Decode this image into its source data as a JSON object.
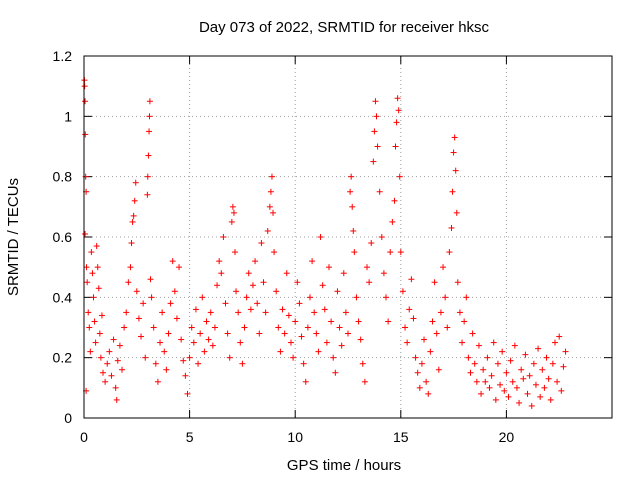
{
  "chart_data": {
    "type": "scatter",
    "title": "Day 073 of 2022, SRMTID for receiver hksc",
    "xlabel": "GPS time / hours",
    "ylabel": "SRMTID / TECUs",
    "xlim": [
      0,
      25
    ],
    "ylim": [
      0,
      1.2
    ],
    "xticks": [
      0,
      5,
      10,
      15,
      20
    ],
    "xtick_labels": [
      "0",
      "5",
      "10",
      "15",
      "20"
    ],
    "yticks": [
      0,
      0.2,
      0.4,
      0.6,
      0.8,
      1.0,
      1.2
    ],
    "ytick_labels": [
      "0",
      "0.2",
      "0.4",
      "0.6",
      "0.8",
      "1",
      "1.2"
    ],
    "grid": true,
    "marker": "+",
    "color": "#ff0000",
    "series": [
      {
        "name": "SRMTID",
        "points": [
          [
            0.02,
            1.12
          ],
          [
            0.03,
            1.1
          ],
          [
            0.05,
            1.05
          ],
          [
            0.06,
            0.94
          ],
          [
            0.08,
            0.8
          ],
          [
            0.1,
            0.75
          ],
          [
            0.05,
            0.61
          ],
          [
            0.12,
            0.5
          ],
          [
            0.15,
            0.45
          ],
          [
            0.2,
            0.35
          ],
          [
            0.25,
            0.3
          ],
          [
            0.3,
            0.22
          ],
          [
            0.1,
            0.09
          ],
          [
            0.35,
            0.55
          ],
          [
            0.4,
            0.48
          ],
          [
            0.45,
            0.4
          ],
          [
            0.5,
            0.32
          ],
          [
            0.55,
            0.25
          ],
          [
            0.6,
            0.57
          ],
          [
            0.65,
            0.5
          ],
          [
            0.7,
            0.43
          ],
          [
            0.75,
            0.28
          ],
          [
            0.8,
            0.2
          ],
          [
            0.85,
            0.34
          ],
          [
            0.9,
            0.15
          ],
          [
            1.0,
            0.12
          ],
          [
            1.1,
            0.18
          ],
          [
            1.2,
            0.22
          ],
          [
            1.3,
            0.14
          ],
          [
            1.4,
            0.26
          ],
          [
            1.5,
            0.1
          ],
          [
            1.55,
            0.06
          ],
          [
            1.6,
            0.19
          ],
          [
            1.7,
            0.24
          ],
          [
            1.8,
            0.16
          ],
          [
            1.9,
            0.3
          ],
          [
            2.0,
            0.35
          ],
          [
            2.1,
            0.45
          ],
          [
            2.2,
            0.5
          ],
          [
            2.25,
            0.58
          ],
          [
            2.3,
            0.65
          ],
          [
            2.35,
            0.67
          ],
          [
            2.4,
            0.72
          ],
          [
            2.45,
            0.78
          ],
          [
            2.5,
            0.42
          ],
          [
            2.6,
            0.33
          ],
          [
            2.7,
            0.27
          ],
          [
            2.8,
            0.38
          ],
          [
            2.9,
            0.2
          ],
          [
            3.0,
            0.74
          ],
          [
            3.02,
            0.8
          ],
          [
            3.05,
            0.87
          ],
          [
            3.08,
            0.95
          ],
          [
            3.1,
            1.0
          ],
          [
            3.12,
            1.05
          ],
          [
            3.15,
            0.46
          ],
          [
            3.2,
            0.4
          ],
          [
            3.3,
            0.3
          ],
          [
            3.4,
            0.18
          ],
          [
            3.5,
            0.12
          ],
          [
            3.6,
            0.25
          ],
          [
            3.7,
            0.35
          ],
          [
            3.8,
            0.22
          ],
          [
            3.9,
            0.16
          ],
          [
            4.0,
            0.28
          ],
          [
            4.1,
            0.38
          ],
          [
            4.2,
            0.52
          ],
          [
            4.3,
            0.42
          ],
          [
            4.4,
            0.33
          ],
          [
            4.5,
            0.5
          ],
          [
            4.6,
            0.26
          ],
          [
            4.7,
            0.19
          ],
          [
            4.8,
            0.14
          ],
          [
            4.9,
            0.08
          ],
          [
            5.0,
            0.2
          ],
          [
            5.1,
            0.3
          ],
          [
            5.2,
            0.25
          ],
          [
            5.3,
            0.36
          ],
          [
            5.4,
            0.18
          ],
          [
            5.5,
            0.28
          ],
          [
            5.6,
            0.4
          ],
          [
            5.7,
            0.22
          ],
          [
            5.8,
            0.32
          ],
          [
            5.9,
            0.26
          ],
          [
            6.0,
            0.35
          ],
          [
            6.1,
            0.24
          ],
          [
            6.2,
            0.3
          ],
          [
            6.3,
            0.44
          ],
          [
            6.4,
            0.52
          ],
          [
            6.5,
            0.48
          ],
          [
            6.6,
            0.6
          ],
          [
            6.7,
            0.38
          ],
          [
            6.8,
            0.28
          ],
          [
            6.9,
            0.2
          ],
          [
            7.0,
            0.65
          ],
          [
            7.05,
            0.7
          ],
          [
            7.1,
            0.68
          ],
          [
            7.15,
            0.55
          ],
          [
            7.2,
            0.42
          ],
          [
            7.3,
            0.35
          ],
          [
            7.4,
            0.25
          ],
          [
            7.5,
            0.18
          ],
          [
            7.6,
            0.3
          ],
          [
            7.7,
            0.4
          ],
          [
            7.8,
            0.48
          ],
          [
            7.9,
            0.36
          ],
          [
            8.0,
            0.44
          ],
          [
            8.1,
            0.52
          ],
          [
            8.2,
            0.38
          ],
          [
            8.3,
            0.28
          ],
          [
            8.4,
            0.58
          ],
          [
            8.5,
            0.45
          ],
          [
            8.6,
            0.35
          ],
          [
            8.7,
            0.62
          ],
          [
            8.8,
            0.7
          ],
          [
            8.85,
            0.75
          ],
          [
            8.9,
            0.8
          ],
          [
            8.95,
            0.68
          ],
          [
            9.0,
            0.55
          ],
          [
            9.1,
            0.42
          ],
          [
            9.2,
            0.3
          ],
          [
            9.3,
            0.22
          ],
          [
            9.4,
            0.36
          ],
          [
            9.5,
            0.28
          ],
          [
            9.6,
            0.48
          ],
          [
            9.7,
            0.34
          ],
          [
            9.8,
            0.25
          ],
          [
            9.9,
            0.2
          ],
          [
            10.0,
            0.32
          ],
          [
            10.1,
            0.45
          ],
          [
            10.2,
            0.38
          ],
          [
            10.3,
            0.27
          ],
          [
            10.4,
            0.18
          ],
          [
            10.5,
            0.12
          ],
          [
            10.6,
            0.3
          ],
          [
            10.7,
            0.4
          ],
          [
            10.8,
            0.52
          ],
          [
            10.9,
            0.35
          ],
          [
            11.0,
            0.28
          ],
          [
            11.1,
            0.22
          ],
          [
            11.2,
            0.6
          ],
          [
            11.3,
            0.44
          ],
          [
            11.4,
            0.36
          ],
          [
            11.5,
            0.25
          ],
          [
            11.6,
            0.5
          ],
          [
            11.7,
            0.32
          ],
          [
            11.8,
            0.2
          ],
          [
            11.9,
            0.15
          ],
          [
            12.0,
            0.42
          ],
          [
            12.1,
            0.3
          ],
          [
            12.2,
            0.24
          ],
          [
            12.3,
            0.48
          ],
          [
            12.4,
            0.35
          ],
          [
            12.5,
            0.28
          ],
          [
            12.6,
            0.75
          ],
          [
            12.65,
            0.8
          ],
          [
            12.7,
            0.7
          ],
          [
            12.75,
            0.62
          ],
          [
            12.8,
            0.55
          ],
          [
            12.9,
            0.4
          ],
          [
            13.0,
            0.32
          ],
          [
            13.1,
            0.26
          ],
          [
            13.2,
            0.18
          ],
          [
            13.3,
            0.12
          ],
          [
            13.4,
            0.5
          ],
          [
            13.5,
            0.45
          ],
          [
            13.6,
            0.58
          ],
          [
            13.7,
            0.85
          ],
          [
            13.75,
            0.95
          ],
          [
            13.8,
            1.05
          ],
          [
            13.85,
            1.0
          ],
          [
            13.9,
            0.9
          ],
          [
            14.0,
            0.75
          ],
          [
            14.1,
            0.6
          ],
          [
            14.2,
            0.48
          ],
          [
            14.3,
            0.4
          ],
          [
            14.4,
            0.32
          ],
          [
            14.5,
            0.55
          ],
          [
            14.6,
            0.65
          ],
          [
            14.7,
            0.72
          ],
          [
            14.75,
            0.9
          ],
          [
            14.8,
            0.98
          ],
          [
            14.85,
            1.06
          ],
          [
            14.9,
            1.02
          ],
          [
            14.95,
            0.8
          ],
          [
            15.0,
            0.55
          ],
          [
            15.1,
            0.42
          ],
          [
            15.2,
            0.3
          ],
          [
            15.3,
            0.25
          ],
          [
            15.4,
            0.36
          ],
          [
            15.5,
            0.46
          ],
          [
            15.6,
            0.33
          ],
          [
            15.7,
            0.2
          ],
          [
            15.8,
            0.15
          ],
          [
            15.9,
            0.1
          ],
          [
            16.0,
            0.18
          ],
          [
            16.1,
            0.26
          ],
          [
            16.2,
            0.12
          ],
          [
            16.3,
            0.08
          ],
          [
            16.4,
            0.22
          ],
          [
            16.5,
            0.32
          ],
          [
            16.6,
            0.45
          ],
          [
            16.7,
            0.28
          ],
          [
            16.8,
            0.16
          ],
          [
            16.9,
            0.35
          ],
          [
            17.0,
            0.5
          ],
          [
            17.1,
            0.4
          ],
          [
            17.2,
            0.3
          ],
          [
            17.3,
            0.55
          ],
          [
            17.4,
            0.63
          ],
          [
            17.45,
            0.75
          ],
          [
            17.5,
            0.88
          ],
          [
            17.55,
            0.93
          ],
          [
            17.6,
            0.82
          ],
          [
            17.65,
            0.68
          ],
          [
            17.7,
            0.45
          ],
          [
            17.8,
            0.35
          ],
          [
            17.9,
            0.25
          ],
          [
            18.0,
            0.32
          ],
          [
            18.1,
            0.4
          ],
          [
            18.2,
            0.2
          ],
          [
            18.3,
            0.15
          ],
          [
            18.4,
            0.28
          ],
          [
            18.5,
            0.18
          ],
          [
            18.6,
            0.12
          ],
          [
            18.7,
            0.24
          ],
          [
            18.8,
            0.08
          ],
          [
            18.9,
            0.16
          ],
          [
            19.0,
            0.12
          ],
          [
            19.1,
            0.2
          ],
          [
            19.2,
            0.1
          ],
          [
            19.3,
            0.14
          ],
          [
            19.4,
            0.25
          ],
          [
            19.5,
            0.06
          ],
          [
            19.6,
            0.18
          ],
          [
            19.7,
            0.11
          ],
          [
            19.8,
            0.22
          ],
          [
            19.9,
            0.09
          ],
          [
            20.0,
            0.15
          ],
          [
            20.1,
            0.07
          ],
          [
            20.2,
            0.19
          ],
          [
            20.3,
            0.12
          ],
          [
            20.4,
            0.24
          ],
          [
            20.5,
            0.1
          ],
          [
            20.6,
            0.05
          ],
          [
            20.7,
            0.16
          ],
          [
            20.8,
            0.13
          ],
          [
            20.9,
            0.21
          ],
          [
            21.0,
            0.08
          ],
          [
            21.1,
            0.14
          ],
          [
            21.2,
            0.04
          ],
          [
            21.3,
            0.18
          ],
          [
            21.4,
            0.11
          ],
          [
            21.5,
            0.23
          ],
          [
            21.6,
            0.07
          ],
          [
            21.7,
            0.16
          ],
          [
            21.8,
            0.1
          ],
          [
            21.9,
            0.2
          ],
          [
            22.0,
            0.13
          ],
          [
            22.1,
            0.06
          ],
          [
            22.2,
            0.18
          ],
          [
            22.3,
            0.25
          ],
          [
            22.4,
            0.12
          ],
          [
            22.5,
            0.27
          ],
          [
            22.6,
            0.09
          ],
          [
            22.7,
            0.17
          ],
          [
            22.8,
            0.22
          ]
        ]
      }
    ]
  }
}
